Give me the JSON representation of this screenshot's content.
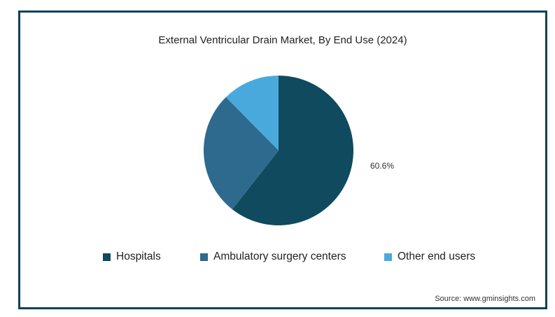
{
  "chart_data": {
    "type": "pie",
    "title": "External Ventricular Drain Market, By End Use (2024)",
    "categories": [
      "Hospitals",
      "Ambulatory surgery centers",
      "Other end users"
    ],
    "values": [
      60.6,
      27.0,
      12.4
    ],
    "colors": [
      "#0f4a5e",
      "#2d6a8e",
      "#4aa9dc"
    ],
    "data_labels": [
      "60.6%",
      "",
      ""
    ],
    "legend_position": "bottom",
    "start_angle_deg": 0,
    "direction": "clockwise"
  },
  "source": "Source: www.gminsights.com"
}
